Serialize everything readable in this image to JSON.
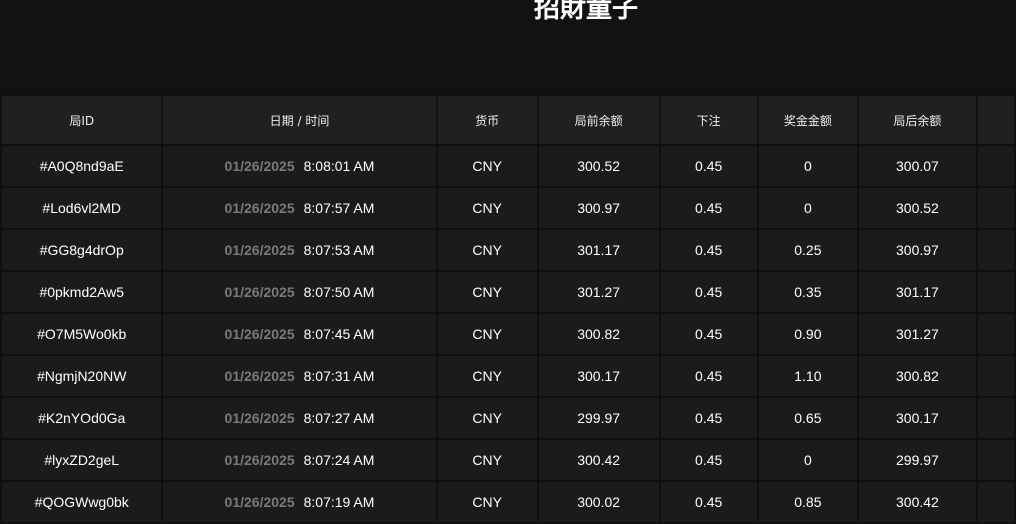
{
  "header": {
    "title": "招財童子"
  },
  "table": {
    "columns": [
      "局ID",
      "日期 / 时间",
      "货币",
      "局前余额",
      "下注",
      "奖金金额",
      "局后余额",
      ""
    ],
    "rows": [
      {
        "id": "#A0Q8nd9aE",
        "date": "01/26/2025",
        "time": "8:08:01 AM",
        "currency": "CNY",
        "before": "300.52",
        "bet": "0.45",
        "win": "0",
        "after": "300.07"
      },
      {
        "id": "#Lod6vl2MD",
        "date": "01/26/2025",
        "time": "8:07:57 AM",
        "currency": "CNY",
        "before": "300.97",
        "bet": "0.45",
        "win": "0",
        "after": "300.52"
      },
      {
        "id": "#GG8g4drOp",
        "date": "01/26/2025",
        "time": "8:07:53 AM",
        "currency": "CNY",
        "before": "301.17",
        "bet": "0.45",
        "win": "0.25",
        "after": "300.97"
      },
      {
        "id": "#0pkmd2Aw5",
        "date": "01/26/2025",
        "time": "8:07:50 AM",
        "currency": "CNY",
        "before": "301.27",
        "bet": "0.45",
        "win": "0.35",
        "after": "301.17"
      },
      {
        "id": "#O7M5Wo0kb",
        "date": "01/26/2025",
        "time": "8:07:45 AM",
        "currency": "CNY",
        "before": "300.82",
        "bet": "0.45",
        "win": "0.90",
        "after": "301.27"
      },
      {
        "id": "#NgmjN20NW",
        "date": "01/26/2025",
        "time": "8:07:31 AM",
        "currency": "CNY",
        "before": "300.17",
        "bet": "0.45",
        "win": "1.10",
        "after": "300.82"
      },
      {
        "id": "#K2nYOd0Ga",
        "date": "01/26/2025",
        "time": "8:07:27 AM",
        "currency": "CNY",
        "before": "299.97",
        "bet": "0.45",
        "win": "0.65",
        "after": "300.17"
      },
      {
        "id": "#lyxZD2geL",
        "date": "01/26/2025",
        "time": "8:07:24 AM",
        "currency": "CNY",
        "before": "300.42",
        "bet": "0.45",
        "win": "0",
        "after": "299.97"
      },
      {
        "id": "#QOGWwg0bk",
        "date": "01/26/2025",
        "time": "8:07:19 AM",
        "currency": "CNY",
        "before": "300.02",
        "bet": "0.45",
        "win": "0.85",
        "after": "300.42"
      }
    ]
  }
}
